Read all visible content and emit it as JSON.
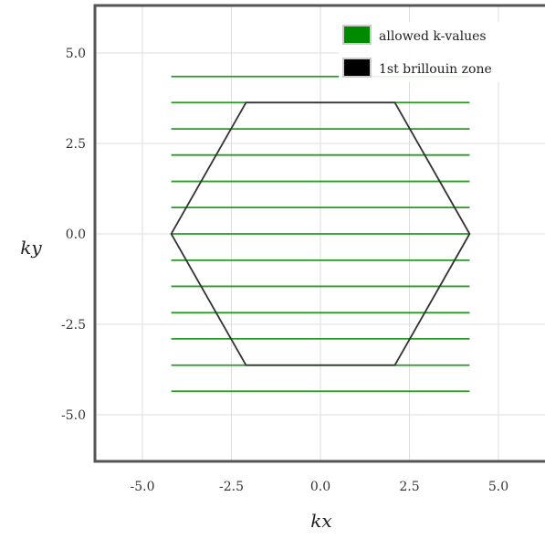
{
  "chart_data": {
    "type": "line",
    "xlabel": "kx",
    "ylabel": "ky",
    "xlim": [
      -6.2,
      6.2
    ],
    "ylim": [
      -6.2,
      6.2
    ],
    "x_ticks": [
      "-5.0",
      "-2.5",
      "0.0",
      "2.5",
      "5.0"
    ],
    "x_tick_values": [
      -5.0,
      -2.5,
      0.0,
      2.5,
      5.0
    ],
    "y_ticks": [
      "5.0",
      "2.5",
      "0.0",
      "-2.5",
      "-5.0"
    ],
    "y_tick_values": [
      5.0,
      2.5,
      0.0,
      -2.5,
      -5.0
    ],
    "grid": true,
    "legend": {
      "placement": "top-right",
      "entries": [
        {
          "label": "allowed k-values",
          "color": "#008a00"
        },
        {
          "label": "1st brillouin zone",
          "color": "#000000"
        }
      ]
    },
    "series": [
      {
        "name": "allowed k-values",
        "color": "#008a00",
        "type": "horizontal-segments",
        "x_range": [
          -4.19,
          4.19
        ],
        "y_values": [
          -4.35,
          -3.63,
          -2.9,
          -2.18,
          -1.45,
          -0.73,
          0.0,
          0.73,
          1.45,
          2.18,
          2.9,
          3.63,
          4.35
        ]
      },
      {
        "name": "1st brillouin zone",
        "color": "#333333",
        "type": "polygon",
        "points": [
          [
            -4.19,
            0.0
          ],
          [
            -2.09,
            3.63
          ],
          [
            2.09,
            3.63
          ],
          [
            4.19,
            0.0
          ],
          [
            2.09,
            -3.63
          ],
          [
            -2.09,
            -3.63
          ]
        ]
      }
    ]
  }
}
